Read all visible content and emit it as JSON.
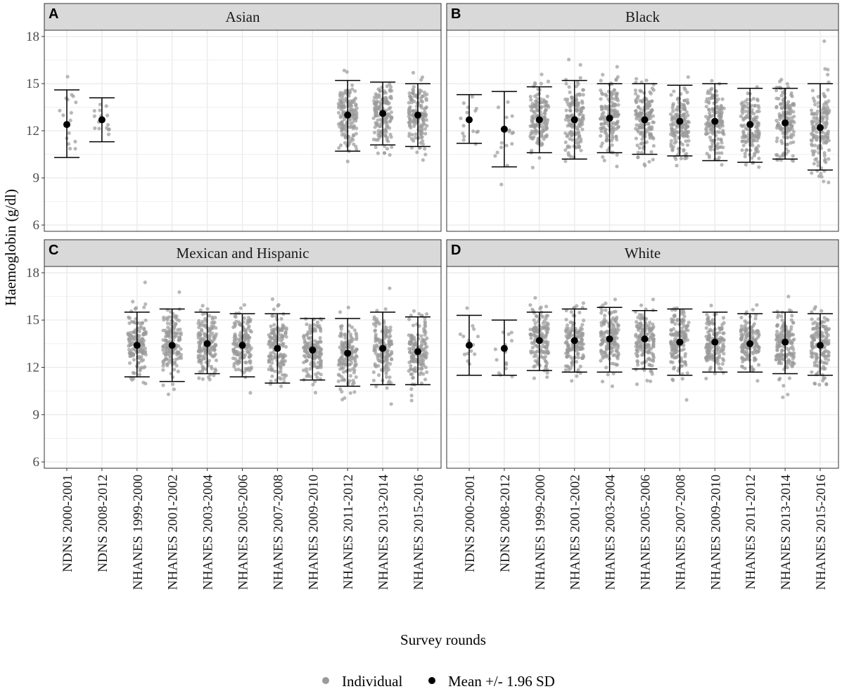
{
  "colors": {
    "individual": "#9a9a9a",
    "mean": "#000000",
    "strip_fill": "#d9d9d9",
    "grid": "#ebebeb",
    "panel_border": "#333333"
  },
  "chart_data": {
    "type": "scatter",
    "xlabel": "Survey rounds",
    "ylabel": "Haemoglobin (g/dl)",
    "ylim": [
      5.6,
      18.4
    ],
    "yticks": [
      6,
      9,
      12,
      15,
      18
    ],
    "grid": true,
    "legend_position": "bottom",
    "legend": [
      {
        "name": "Individual",
        "marker": "point-grey"
      },
      {
        "name": "Mean +/- 1.96 SD",
        "marker": "point-black"
      }
    ],
    "categories": [
      "NDNS 2000-2001",
      "NDNS 2008-2012",
      "NHANES 1999-2000",
      "NHANES 2001-2002",
      "NHANES 2003-2004",
      "NHANES 2005-2006",
      "NHANES 2007-2008",
      "NHANES 2009-2010",
      "NHANES 2011-2012",
      "NHANES 2013-2014",
      "NHANES 2015-2016"
    ],
    "panels": [
      {
        "tag": "A",
        "title": "Asian",
        "summary": [
          {
            "category": "NDNS 2000-2001",
            "mean": 12.4,
            "lower": 10.3,
            "upper": 14.6
          },
          {
            "category": "NDNS 2008-2012",
            "mean": 12.7,
            "lower": 11.3,
            "upper": 14.1
          },
          {
            "category": "NHANES 2011-2012",
            "mean": 13.0,
            "lower": 10.7,
            "upper": 15.2
          },
          {
            "category": "NHANES 2013-2014",
            "mean": 13.1,
            "lower": 11.1,
            "upper": 15.1
          },
          {
            "category": "NHANES 2015-2016",
            "mean": 13.0,
            "lower": 11.0,
            "upper": 15.0
          }
        ]
      },
      {
        "tag": "B",
        "title": "Black",
        "summary": [
          {
            "category": "NDNS 2000-2001",
            "mean": 12.7,
            "lower": 11.2,
            "upper": 14.3
          },
          {
            "category": "NDNS 2008-2012",
            "mean": 12.1,
            "lower": 9.7,
            "upper": 14.5
          },
          {
            "category": "NHANES 1999-2000",
            "mean": 12.7,
            "lower": 10.6,
            "upper": 14.8
          },
          {
            "category": "NHANES 2001-2002",
            "mean": 12.7,
            "lower": 10.2,
            "upper": 15.2
          },
          {
            "category": "NHANES 2003-2004",
            "mean": 12.8,
            "lower": 10.6,
            "upper": 15.0
          },
          {
            "category": "NHANES 2005-2006",
            "mean": 12.7,
            "lower": 10.5,
            "upper": 15.0
          },
          {
            "category": "NHANES 2007-2008",
            "mean": 12.6,
            "lower": 10.4,
            "upper": 14.9
          },
          {
            "category": "NHANES 2009-2010",
            "mean": 12.6,
            "lower": 10.1,
            "upper": 15.0
          },
          {
            "category": "NHANES 2011-2012",
            "mean": 12.4,
            "lower": 10.0,
            "upper": 14.7
          },
          {
            "category": "NHANES 2013-2014",
            "mean": 12.5,
            "lower": 10.2,
            "upper": 14.7
          },
          {
            "category": "NHANES 2015-2016",
            "mean": 12.2,
            "lower": 9.5,
            "upper": 15.0
          }
        ]
      },
      {
        "tag": "C",
        "title": "Mexican and Hispanic",
        "summary": [
          {
            "category": "NHANES 1999-2000",
            "mean": 13.4,
            "lower": 11.4,
            "upper": 15.5
          },
          {
            "category": "NHANES 2001-2002",
            "mean": 13.4,
            "lower": 11.1,
            "upper": 15.7
          },
          {
            "category": "NHANES 2003-2004",
            "mean": 13.5,
            "lower": 11.6,
            "upper": 15.5
          },
          {
            "category": "NHANES 2005-2006",
            "mean": 13.4,
            "lower": 11.4,
            "upper": 15.4
          },
          {
            "category": "NHANES 2007-2008",
            "mean": 13.2,
            "lower": 11.0,
            "upper": 15.4
          },
          {
            "category": "NHANES 2009-2010",
            "mean": 13.1,
            "lower": 11.2,
            "upper": 15.1
          },
          {
            "category": "NHANES 2011-2012",
            "mean": 12.9,
            "lower": 10.8,
            "upper": 15.1
          },
          {
            "category": "NHANES 2013-2014",
            "mean": 13.2,
            "lower": 10.9,
            "upper": 15.5
          },
          {
            "category": "NHANES 2015-2016",
            "mean": 13.0,
            "lower": 10.9,
            "upper": 15.2
          }
        ]
      },
      {
        "tag": "D",
        "title": "White",
        "summary": [
          {
            "category": "NDNS 2000-2001",
            "mean": 13.4,
            "lower": 11.5,
            "upper": 15.3
          },
          {
            "category": "NDNS 2008-2012",
            "mean": 13.2,
            "lower": 11.5,
            "upper": 15.0
          },
          {
            "category": "NHANES 1999-2000",
            "mean": 13.7,
            "lower": 11.8,
            "upper": 15.5
          },
          {
            "category": "NHANES 2001-2002",
            "mean": 13.7,
            "lower": 11.7,
            "upper": 15.7
          },
          {
            "category": "NHANES 2003-2004",
            "mean": 13.8,
            "lower": 11.7,
            "upper": 15.8
          },
          {
            "category": "NHANES 2005-2006",
            "mean": 13.8,
            "lower": 11.9,
            "upper": 15.6
          },
          {
            "category": "NHANES 2007-2008",
            "mean": 13.6,
            "lower": 11.5,
            "upper": 15.7
          },
          {
            "category": "NHANES 2009-2010",
            "mean": 13.6,
            "lower": 11.7,
            "upper": 15.5
          },
          {
            "category": "NHANES 2011-2012",
            "mean": 13.5,
            "lower": 11.7,
            "upper": 15.4
          },
          {
            "category": "NHANES 2013-2014",
            "mean": 13.6,
            "lower": 11.6,
            "upper": 15.5
          },
          {
            "category": "NHANES 2015-2016",
            "mean": 13.4,
            "lower": 11.5,
            "upper": 15.4
          }
        ]
      }
    ]
  }
}
